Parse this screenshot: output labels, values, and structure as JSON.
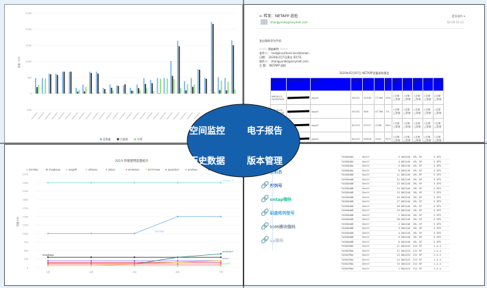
{
  "center": {
    "labels": [
      "空间监控",
      "电子报告",
      "历史数据",
      "版本管理"
    ],
    "color": "#1560ad"
  },
  "chart_data": [
    {
      "type": "bar",
      "ylabel": "容量（GB）",
      "ylim": [
        -50000,
        250000
      ],
      "yticks": [
        "250k",
        "200k",
        "150k",
        "100k",
        "50k",
        "0",
        "-50k"
      ],
      "series": [
        {
          "name": "总容量",
          "color": "#7eb6ea",
          "values": [
            48,
            48,
            62,
            62,
            68,
            68,
            18,
            28,
            68,
            68,
            18,
            28,
            25,
            25,
            18,
            28,
            48,
            42,
            48,
            48,
            101,
            164,
            39,
            48,
            76,
            48,
            222,
            51,
            48,
            165
          ]
        },
        {
          "name": "已使用",
          "color": "#333333",
          "values": [
            20,
            0,
            60,
            58,
            68,
            68,
            6,
            7,
            64,
            62,
            14,
            18,
            24,
            29,
            9,
            17,
            30,
            32,
            1,
            0,
            55,
            147,
            10,
            21,
            74,
            46,
            216,
            11,
            10,
            150
          ]
        },
        {
          "name": "可用",
          "color": "#8ee07a",
          "values": [
            27,
            47,
            0,
            2,
            0,
            0,
            11,
            21,
            3,
            5,
            3,
            10,
            0,
            -3,
            9,
            10,
            17,
            8,
            46,
            47,
            45,
            17,
            29,
            28,
            0,
            0,
            5,
            40,
            37,
            13
          ]
        }
      ],
      "unit_note": "k"
    },
    {
      "type": "line",
      "title": "2019 存储使用容量统计",
      "ylabel": "容量(GB)",
      "ylim": [
        0,
        2750
      ],
      "yticks": [
        0,
        250,
        500,
        750,
        1000,
        1250,
        1500,
        1750,
        2000,
        2250,
        2500,
        2750
      ],
      "categories": [
        "1月",
        "4月",
        "5月",
        "6月",
        "7月"
      ],
      "series": [
        {
          "name": "itsmfap",
          "color": "#7eb6ea",
          "values": [
            1000,
            1000,
            1000,
            1500,
            1500
          ],
          "label": "itsmfap"
        },
        {
          "name": "mogbapp",
          "color": "#333333",
          "values": [
            300,
            300,
            300,
            300,
            300
          ],
          "label": "mogbapp"
        },
        {
          "name": "pagefil",
          "color": "#7de07a",
          "values": [
            50,
            50,
            50,
            50,
            50
          ],
          "label": "pagefil"
        },
        {
          "name": "pfissap",
          "color": "#f5a66a",
          "values": [
            120,
            120,
            120,
            160,
            200
          ]
        },
        {
          "name": "pilips",
          "color": "#8a7ef0",
          "values": [
            200,
            200,
            200,
            200,
            200
          ],
          "label": "pilips"
        },
        {
          "name": "pmdubsc",
          "color": "#f04a7a",
          "values": [
            150,
            150,
            150,
            150,
            150
          ]
        },
        {
          "name": "pmrmsap",
          "color": "#f0d24a",
          "values": [
            50,
            50,
            100,
            150,
            200
          ]
        },
        {
          "name": "ppqsdsvr",
          "color": "#2a8a80",
          "values": [
            100,
            100,
            100,
            300,
            400
          ],
          "label": "ppqsdsvr"
        },
        {
          "name": "prafsaa",
          "color": "#f06a6a",
          "values": [
            100,
            100,
            100,
            100,
            100
          ]
        },
        {
          "name": "apis",
          "color": "#7ae0e0",
          "values": [
            2500,
            2500,
            2500,
            2500,
            2500
          ],
          "label": "mosdo_fl"
        }
      ]
    }
  ],
  "email": {
    "subject": "← 转发：NETAPP 巡检",
    "from": "zhangyunbo@sinymet.com",
    "more": "更多操作 ▾",
    "date": "02-09 16:13",
    "body": [
      "发自我的华为手机",
      "",
      "-------- 原始邮件 --------",
      "发件人： root@localhost.localdomain",
      "日期： 2020年2月7日周五 00:55",
      "收件人： zhangyunbo@sinymet.com",
      "主 题： NETAPP 巡检"
    ],
    "report_title": "2020年02月07日 NETAPP设备巡检报告",
    "headers": [
      "存储型号",
      "存储系统序列号",
      "聚合名称",
      "总容量",
      "已用",
      "剩余",
      "使用率",
      "硬件状态",
      "运行状态",
      "集群状态",
      "卷状态",
      "软件状态"
    ],
    "rows": [
      [
        "M808-01-FAS6296A",
        "aggr0",
        "49232",
        "29946",
        "27286",
        "43%"
      ],
      [
        "M808-02-FAS6290B",
        "aggr0",
        "49232",
        "466",
        "47766",
        "1%"
      ],
      [
        "",
        "aggr0",
        "62013",
        "59727",
        "2286",
        "96%"
      ],
      [
        "",
        "aggr0",
        "62013",
        "58626",
        "3387",
        "95%"
      ]
    ],
    "status": "√正常□异常"
  },
  "menu": [
    {
      "label": "主机名",
      "color": "#3a8ee6"
    },
    {
      "label": "序列号",
      "color": "#2a6fc0"
    },
    {
      "label": "ontap微码",
      "color": "#1fbf9a"
    },
    {
      "label": "磁盘阵列型号",
      "color": "#3aa0e6"
    },
    {
      "label": "IOM模块微码",
      "color": "#8090a0"
    },
    {
      "label": "sp微码",
      "color": "#b8c4d0"
    }
  ],
  "firmware": [
    [
      "FAS8040A",
      "Shelf",
      "3 D04246",
      "19L SP",
      "3.3P3"
    ],
    [
      "FAS8040A",
      "Shelf",
      "4 D04246",
      "19L SP",
      "3.3P3"
    ],
    [
      "FAS8040A",
      "Shelf",
      "5 D04246",
      "19L SP",
      "3.3P3"
    ],
    [
      "FAS8040A",
      "Shelf",
      "6 D04246",
      "19L SP",
      "3.3P3"
    ],
    [
      "FAS8040B",
      "Shelf",
      "11 D02246",
      "19L SP",
      "3.3P3"
    ],
    [
      "FAS8040B",
      "Shelf",
      "12 D02246",
      "19L SP",
      "3.3P3"
    ],
    [
      "FAS8040B",
      "Shelf",
      "13 D02246",
      "19L SP",
      "3.3P3"
    ],
    [
      "FAS8040B",
      "Shelf",
      "14 D02246",
      "19L SP",
      "3.3P3"
    ],
    [
      "FAS8040B",
      "Shelf",
      "15 D02246",
      "19L SP",
      "3.3P3"
    ],
    [
      "FAS8040B",
      "Shelf",
      "16 D02246",
      "19L SP",
      "3.3P3"
    ],
    [
      "FAS8040B",
      "Shelf",
      "17 D02246",
      "19L SP",
      "3.3P3"
    ],
    [
      "FAS8040B",
      "Shelf",
      "18 D02246",
      "19L SP",
      "3.3P3"
    ],
    [
      "FAS8040B",
      "Shelf",
      "19 D02246",
      "19L SP",
      "3.3P3"
    ],
    [
      "FAS8040B",
      "Shelf",
      "1 D04246",
      "19L SP",
      "3.3P3"
    ],
    [
      "FAS8040B",
      "Shelf",
      "20 D02246",
      "19L SP",
      "3.3P3"
    ],
    [
      "FAS8040B",
      "Shelf",
      "2 D04246",
      "19L SP",
      "3.3P3"
    ],
    [
      "FAS8040B",
      "Shelf",
      "3 D04246",
      "19L SP",
      "3.3P3"
    ],
    [
      "FAS8040B",
      "Shelf",
      "4 D04246",
      "19L SP",
      "3.3P3"
    ],
    [
      "FAS8040B",
      "Shelf",
      "5 D04246",
      "19L SP",
      "3.3P3"
    ],
    [
      "FAS8040B",
      "Shelf",
      "6 D04246",
      "19L SP",
      "3.3P3"
    ],
    [
      "FAS8290A",
      "Shelf",
      "11 D04243",
      "212 SP",
      "1.4.4"
    ],
    [
      "FAS8290A",
      "Shelf",
      "12 D04243",
      "212 SP",
      "1.4.4"
    ],
    [
      "FAS8290A",
      "Shelf",
      "13 D04243",
      "212 SP",
      "1.4.4"
    ],
    [
      "FAS8290A",
      "Shelf",
      "14 D04243",
      "212 SP",
      "1.4.4"
    ],
    [
      "FAS8290A",
      "Shelf",
      "15 D04243",
      "212 SP",
      "1.4.4"
    ],
    [
      "FAS8290A",
      "Shelf",
      "1 D04243",
      "212 SP",
      "1.4.4"
    ]
  ]
}
